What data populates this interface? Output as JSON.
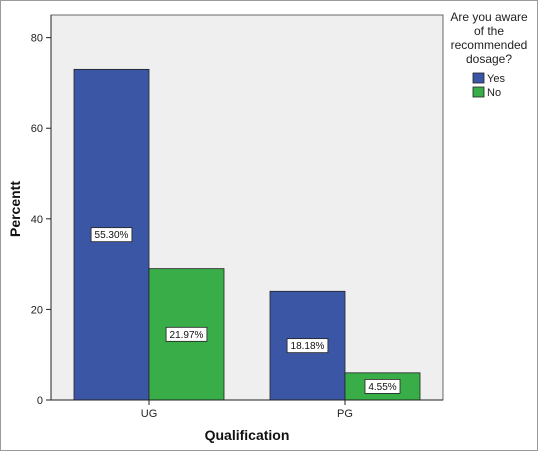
{
  "chart_data": {
    "type": "bar",
    "categories": [
      "UG",
      "PG"
    ],
    "series": [
      {
        "name": "Yes",
        "values": [
          73,
          24
        ],
        "labels": [
          "55.30%",
          "18.18%"
        ]
      },
      {
        "name": "No",
        "values": [
          29,
          6
        ],
        "labels": [
          "21.97%",
          "4.55%"
        ]
      }
    ],
    "xlabel": "Qualification",
    "ylabel": "Percentt",
    "ylim": [
      0,
      85
    ],
    "yticks": [
      0,
      20,
      40,
      60,
      80
    ],
    "legend": {
      "title_lines": [
        "Are you aware",
        "of the",
        "recommended",
        "dosage?"
      ],
      "placement": "right-top"
    },
    "grid": false,
    "colors": {
      "Yes": "#3c56a6",
      "No": "#39ad48",
      "plot_bg": "#efefef"
    }
  }
}
